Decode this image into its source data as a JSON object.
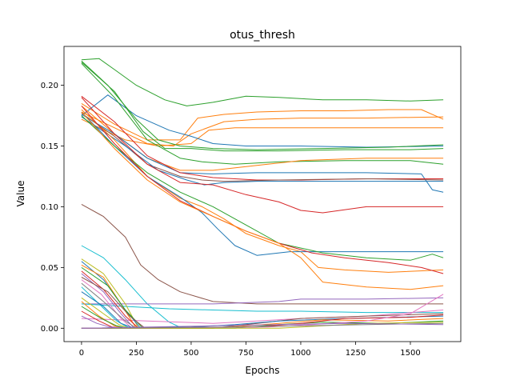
{
  "chart_data": {
    "type": "line",
    "title": "otus_thresh",
    "xlabel": "Epochs",
    "ylabel": "Value",
    "xlim": [
      -80,
      1730
    ],
    "ylim": [
      -0.011,
      0.232
    ],
    "xticks": [
      0,
      250,
      500,
      750,
      1000,
      1250,
      1500
    ],
    "yticks": [
      0.0,
      0.05,
      0.1,
      0.15,
      0.2
    ],
    "ytick_labels": [
      "0.00",
      "0.05",
      "0.10",
      "0.15",
      "0.20"
    ],
    "grid": false,
    "legend": "none",
    "series": [
      {
        "color": "#2ca02c",
        "x": [
          0,
          80,
          150,
          250,
          380,
          480,
          600,
          750,
          900,
          1100,
          1300,
          1500,
          1650
        ],
        "y": [
          0.221,
          0.222,
          0.213,
          0.2,
          0.188,
          0.183,
          0.186,
          0.191,
          0.19,
          0.188,
          0.188,
          0.187,
          0.188
        ]
      },
      {
        "color": "#ff7f0e",
        "x": [
          0,
          150,
          300,
          450,
          530,
          650,
          800,
          1000,
          1200,
          1400,
          1550,
          1650
        ],
        "y": [
          0.185,
          0.168,
          0.155,
          0.155,
          0.173,
          0.176,
          0.178,
          0.179,
          0.179,
          0.18,
          0.18,
          0.172
        ]
      },
      {
        "color": "#ff7f0e",
        "x": [
          0,
          150,
          300,
          420,
          500,
          650,
          800,
          1000,
          1300,
          1650
        ],
        "y": [
          0.178,
          0.165,
          0.152,
          0.15,
          0.16,
          0.17,
          0.172,
          0.173,
          0.173,
          0.174
        ]
      },
      {
        "color": "#ff7f0e",
        "x": [
          0,
          200,
          350,
          500,
          580,
          700,
          900,
          1200,
          1650
        ],
        "y": [
          0.172,
          0.155,
          0.15,
          0.152,
          0.163,
          0.165,
          0.165,
          0.165,
          0.165
        ]
      },
      {
        "color": "#1f77b4",
        "x": [
          0,
          120,
          250,
          400,
          500,
          600,
          750,
          1000,
          1300,
          1650
        ],
        "y": [
          0.175,
          0.192,
          0.175,
          0.163,
          0.158,
          0.152,
          0.15,
          0.15,
          0.149,
          0.15
        ]
      },
      {
        "color": "#2ca02c",
        "x": [
          0,
          120,
          250,
          350,
          450,
          600,
          800,
          1100,
          1400,
          1650
        ],
        "y": [
          0.22,
          0.2,
          0.172,
          0.155,
          0.15,
          0.148,
          0.147,
          0.148,
          0.149,
          0.151
        ]
      },
      {
        "color": "#2ca02c",
        "x": [
          0,
          150,
          280,
          380,
          500,
          650,
          900,
          1200,
          1500,
          1650
        ],
        "y": [
          0.219,
          0.195,
          0.162,
          0.148,
          0.148,
          0.146,
          0.146,
          0.147,
          0.147,
          0.148
        ]
      },
      {
        "color": "#2ca02c",
        "x": [
          0,
          150,
          300,
          450,
          550,
          700,
          900,
          1200,
          1500,
          1650
        ],
        "y": [
          0.218,
          0.19,
          0.155,
          0.14,
          0.137,
          0.135,
          0.137,
          0.138,
          0.138,
          0.135
        ]
      },
      {
        "color": "#ff7f0e",
        "x": [
          0,
          150,
          300,
          450,
          600,
          800,
          1000,
          1300,
          1650
        ],
        "y": [
          0.183,
          0.16,
          0.14,
          0.13,
          0.13,
          0.134,
          0.138,
          0.14,
          0.14
        ]
      },
      {
        "color": "#1f77b4",
        "x": [
          0,
          150,
          300,
          450,
          600,
          800,
          1000,
          1300,
          1550,
          1600,
          1650
        ],
        "y": [
          0.176,
          0.16,
          0.14,
          0.128,
          0.127,
          0.128,
          0.128,
          0.128,
          0.127,
          0.114,
          0.112
        ]
      },
      {
        "color": "#d62728",
        "x": [
          0,
          150,
          300,
          450,
          600,
          800,
          1000,
          1300,
          1650
        ],
        "y": [
          0.191,
          0.17,
          0.142,
          0.128,
          0.124,
          0.122,
          0.122,
          0.123,
          0.123
        ]
      },
      {
        "color": "#8c564b",
        "x": [
          0,
          150,
          300,
          450,
          550,
          650,
          900,
          1300,
          1650
        ],
        "y": [
          0.177,
          0.158,
          0.135,
          0.125,
          0.122,
          0.121,
          0.122,
          0.123,
          0.122
        ]
      },
      {
        "color": "#1f77b4",
        "x": [
          0,
          200,
          350,
          480,
          560,
          650,
          800,
          1100,
          1400,
          1650
        ],
        "y": [
          0.174,
          0.15,
          0.13,
          0.122,
          0.118,
          0.12,
          0.121,
          0.121,
          0.121,
          0.121
        ]
      },
      {
        "color": "#d62728",
        "x": [
          0,
          150,
          300,
          450,
          600,
          750,
          900,
          1000,
          1100,
          1300,
          1650
        ],
        "y": [
          0.19,
          0.16,
          0.135,
          0.12,
          0.118,
          0.11,
          0.104,
          0.097,
          0.095,
          0.1,
          0.1
        ]
      },
      {
        "color": "#ff7f0e",
        "x": [
          0,
          150,
          300,
          450,
          550,
          650,
          750,
          900,
          1000,
          1080,
          1200,
          1400,
          1650
        ],
        "y": [
          0.18,
          0.155,
          0.125,
          0.107,
          0.1,
          0.09,
          0.078,
          0.068,
          0.063,
          0.05,
          0.048,
          0.046,
          0.048
        ]
      },
      {
        "color": "#1f77b4",
        "x": [
          0,
          150,
          300,
          450,
          550,
          620,
          700,
          800,
          950,
          1050,
          1200,
          1400,
          1650
        ],
        "y": [
          0.178,
          0.15,
          0.125,
          0.108,
          0.095,
          0.082,
          0.068,
          0.06,
          0.063,
          0.063,
          0.063,
          0.063,
          0.063
        ]
      },
      {
        "color": "#2ca02c",
        "x": [
          0,
          150,
          300,
          450,
          600,
          750,
          900,
          1100,
          1300,
          1500,
          1600,
          1650
        ],
        "y": [
          0.175,
          0.15,
          0.128,
          0.112,
          0.1,
          0.085,
          0.07,
          0.062,
          0.058,
          0.056,
          0.061,
          0.058
        ]
      },
      {
        "color": "#d62728",
        "x": [
          0,
          150,
          300,
          450,
          600,
          750,
          900,
          1050,
          1200,
          1400,
          1550,
          1650
        ],
        "y": [
          0.183,
          0.152,
          0.125,
          0.105,
          0.092,
          0.08,
          0.07,
          0.062,
          0.058,
          0.054,
          0.05,
          0.045
        ]
      },
      {
        "color": "#ff7f0e",
        "x": [
          0,
          150,
          300,
          450,
          600,
          750,
          900,
          1000,
          1100,
          1300,
          1500,
          1650
        ],
        "y": [
          0.178,
          0.148,
          0.122,
          0.104,
          0.092,
          0.08,
          0.07,
          0.058,
          0.038,
          0.034,
          0.032,
          0.035
        ]
      },
      {
        "color": "#8c564b",
        "x": [
          0,
          100,
          200,
          270,
          350,
          450,
          600,
          800,
          1000,
          1300,
          1650
        ],
        "y": [
          0.102,
          0.092,
          0.075,
          0.052,
          0.04,
          0.03,
          0.022,
          0.02,
          0.02,
          0.02,
          0.02
        ]
      },
      {
        "color": "#17becf",
        "x": [
          0,
          100,
          200,
          300,
          400,
          460
        ],
        "y": [
          0.068,
          0.058,
          0.04,
          0.02,
          0.005,
          0.0
        ]
      },
      {
        "color": "#9467bd",
        "x": [
          0,
          300,
          600,
          900,
          1000,
          1300,
          1650
        ],
        "y": [
          0.02,
          0.02,
          0.02,
          0.022,
          0.024,
          0.024,
          0.025
        ]
      },
      {
        "color": "#17becf",
        "x": [
          0,
          200,
          400,
          600,
          800,
          1000,
          1300,
          1650
        ],
        "y": [
          0.02,
          0.018,
          0.016,
          0.015,
          0.014,
          0.014,
          0.013,
          0.013
        ]
      },
      {
        "color": "#e377c2",
        "x": [
          0,
          300,
          600,
          800,
          1000,
          1300,
          1650
        ],
        "y": [
          0.008,
          0.006,
          0.004,
          0.006,
          0.008,
          0.01,
          0.015
        ]
      },
      {
        "color": "#bcbd22",
        "x": [
          0,
          100,
          200,
          260
        ],
        "y": [
          0.057,
          0.045,
          0.02,
          0.0
        ]
      },
      {
        "color": "#1f77b4",
        "x": [
          0,
          100,
          200,
          270
        ],
        "y": [
          0.055,
          0.04,
          0.015,
          0.0
        ]
      },
      {
        "color": "#ff7f0e",
        "x": [
          0,
          100,
          180,
          250
        ],
        "y": [
          0.052,
          0.042,
          0.02,
          0.0
        ]
      },
      {
        "color": "#2ca02c",
        "x": [
          0,
          120,
          200,
          280
        ],
        "y": [
          0.05,
          0.035,
          0.015,
          0.0
        ]
      },
      {
        "color": "#d62728",
        "x": [
          0,
          100,
          200,
          260
        ],
        "y": [
          0.047,
          0.032,
          0.01,
          0.0
        ]
      },
      {
        "color": "#9467bd",
        "x": [
          0,
          100,
          180,
          240
        ],
        "y": [
          0.045,
          0.03,
          0.012,
          0.0
        ]
      },
      {
        "color": "#8c564b",
        "x": [
          0,
          120,
          220,
          290
        ],
        "y": [
          0.042,
          0.03,
          0.01,
          0.0
        ]
      },
      {
        "color": "#e377c2",
        "x": [
          0,
          90,
          180,
          230
        ],
        "y": [
          0.04,
          0.028,
          0.008,
          0.0
        ]
      },
      {
        "color": "#7f7f7f",
        "x": [
          0,
          100,
          200,
          250
        ],
        "y": [
          0.037,
          0.022,
          0.006,
          0.0
        ]
      },
      {
        "color": "#17becf",
        "x": [
          0,
          80,
          160,
          220
        ],
        "y": [
          0.034,
          0.02,
          0.006,
          0.0
        ]
      },
      {
        "color": "#1f77b4",
        "x": [
          0,
          100,
          180,
          240
        ],
        "y": [
          0.03,
          0.018,
          0.004,
          0.0
        ]
      },
      {
        "color": "#bcbd22",
        "x": [
          0,
          100,
          170,
          220
        ],
        "y": [
          0.025,
          0.012,
          0.003,
          0.0
        ]
      },
      {
        "color": "#ff7f0e",
        "x": [
          0,
          80,
          150,
          200
        ],
        "y": [
          0.022,
          0.01,
          0.002,
          0.0
        ]
      },
      {
        "color": "#2ca02c",
        "x": [
          0,
          90,
          160,
          210
        ],
        "y": [
          0.018,
          0.008,
          0.002,
          0.0
        ]
      },
      {
        "color": "#d62728",
        "x": [
          0,
          80,
          140,
          200
        ],
        "y": [
          0.014,
          0.006,
          0.001,
          0.0
        ]
      },
      {
        "color": "#9467bd",
        "x": [
          0,
          70,
          130,
          190
        ],
        "y": [
          0.01,
          0.004,
          0.001,
          0.0
        ]
      },
      {
        "color": "#8c564b",
        "x": [
          0,
          600,
          800,
          1000,
          1300,
          1650
        ],
        "y": [
          0.0,
          0.0,
          0.004,
          0.008,
          0.01,
          0.012
        ]
      },
      {
        "color": "#1f77b4",
        "x": [
          0,
          500,
          700,
          900,
          1200,
          1650
        ],
        "y": [
          0.0,
          0.001,
          0.003,
          0.006,
          0.008,
          0.01
        ]
      },
      {
        "color": "#ff7f0e",
        "x": [
          0,
          600,
          900,
          1100,
          1400,
          1650
        ],
        "y": [
          0.0,
          0.0,
          0.004,
          0.007,
          0.006,
          0.008
        ]
      },
      {
        "color": "#2ca02c",
        "x": [
          0,
          700,
          900,
          1100,
          1400,
          1650
        ],
        "y": [
          0.0,
          0.0,
          0.003,
          0.005,
          0.004,
          0.006
        ]
      },
      {
        "color": "#d62728",
        "x": [
          0,
          800,
          1000,
          1200,
          1500,
          1650
        ],
        "y": [
          0.0,
          0.001,
          0.004,
          0.008,
          0.009,
          0.011
        ]
      },
      {
        "color": "#bcbd22",
        "x": [
          0,
          900,
          1100,
          1300,
          1650
        ],
        "y": [
          0.0,
          0.0,
          0.002,
          0.004,
          0.005
        ]
      },
      {
        "color": "#e377c2",
        "x": [
          0,
          850,
          1050,
          1300,
          1500,
          1650
        ],
        "y": [
          0.0,
          0.001,
          0.003,
          0.006,
          0.012,
          0.028
        ]
      },
      {
        "color": "#7f7f7f",
        "x": [
          0,
          700,
          1000,
          1300,
          1650
        ],
        "y": [
          0.0,
          0.001,
          0.002,
          0.003,
          0.004
        ]
      },
      {
        "color": "#9467bd",
        "x": [
          0,
          600,
          900,
          1200,
          1650
        ],
        "y": [
          0.0,
          0.002,
          0.003,
          0.004,
          0.003
        ]
      }
    ]
  }
}
